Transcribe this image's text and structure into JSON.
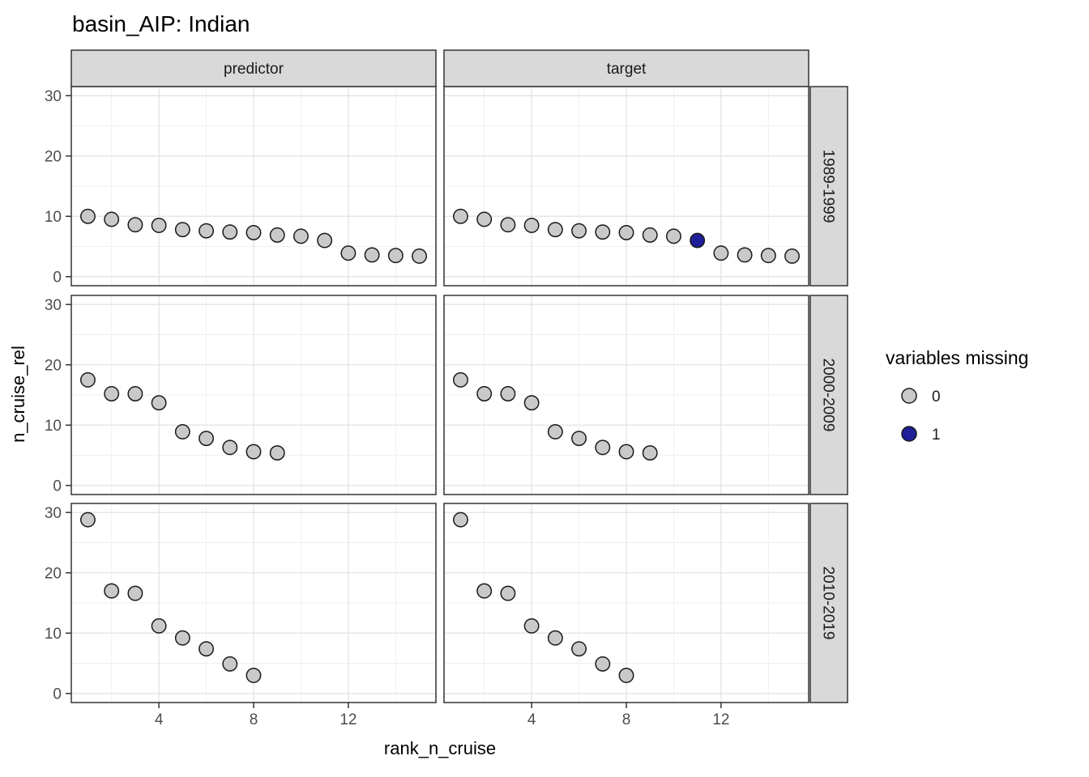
{
  "title": "basin_AIP: Indian",
  "chart_data": {
    "type": "scatter",
    "title": "basin_AIP: Indian",
    "xlabel": "rank_n_cruise",
    "ylabel": "n_cruise_rel",
    "x_ticks": [
      4,
      8,
      12
    ],
    "x_minor_breaks": [
      2,
      6,
      10,
      14
    ],
    "y_ticks": [
      0,
      10,
      20,
      30
    ],
    "y_minor_breaks": [
      5,
      15,
      25
    ],
    "xlim": [
      0.3,
      15.7
    ],
    "ylim": [
      -1.5,
      31.5
    ],
    "grid": "on",
    "facet": {
      "cols": [
        "predictor",
        "target"
      ],
      "rows": [
        "1989-1999",
        "2000-2009",
        "2010-2019"
      ]
    },
    "legend": {
      "title": "variables missing",
      "position": "right",
      "items": [
        {
          "label": "0",
          "fill": "#c9c9c9"
        },
        {
          "label": "1",
          "m": 1,
          "fill": "#1f1f99"
        }
      ]
    },
    "color_map": {
      "0": "#c9c9c9",
      "1": "#1f1f99"
    },
    "panels": [
      {
        "facet_col": "predictor",
        "facet_row": "1989-1999",
        "x": [
          1,
          2,
          3,
          4,
          5,
          6,
          7,
          8,
          9,
          10,
          11,
          12,
          13,
          14,
          15
        ],
        "y": [
          10.0,
          9.5,
          8.6,
          8.5,
          7.8,
          7.6,
          7.4,
          7.3,
          6.9,
          6.7,
          6.0,
          3.9,
          3.6,
          3.5,
          3.4
        ],
        "missing": [
          0,
          0,
          0,
          0,
          0,
          0,
          0,
          0,
          0,
          0,
          0,
          0,
          0,
          0,
          0
        ]
      },
      {
        "facet_col": "target",
        "facet_row": "1989-1999",
        "x": [
          1,
          2,
          3,
          4,
          5,
          6,
          7,
          8,
          9,
          10,
          11,
          12,
          13,
          14,
          15
        ],
        "y": [
          10.0,
          9.5,
          8.6,
          8.5,
          7.8,
          7.6,
          7.4,
          7.3,
          6.9,
          6.7,
          6.0,
          3.9,
          3.6,
          3.5,
          3.4
        ],
        "missing": [
          0,
          0,
          0,
          0,
          0,
          0,
          0,
          0,
          0,
          0,
          1,
          0,
          0,
          0,
          0
        ]
      },
      {
        "facet_col": "predictor",
        "facet_row": "2000-2009",
        "x": [
          1,
          2,
          3,
          4,
          5,
          6,
          7,
          8,
          9
        ],
        "y": [
          17.5,
          15.2,
          15.2,
          13.7,
          8.9,
          7.8,
          6.3,
          5.6,
          5.4
        ],
        "missing": [
          0,
          0,
          0,
          0,
          0,
          0,
          0,
          0,
          0
        ]
      },
      {
        "facet_col": "target",
        "facet_row": "2000-2009",
        "x": [
          1,
          2,
          3,
          4,
          5,
          6,
          7,
          8,
          9
        ],
        "y": [
          17.5,
          15.2,
          15.2,
          13.7,
          8.9,
          7.8,
          6.3,
          5.6,
          5.4
        ],
        "missing": [
          0,
          0,
          0,
          0,
          0,
          0,
          0,
          0,
          0
        ]
      },
      {
        "facet_col": "predictor",
        "facet_row": "2010-2019",
        "x": [
          1,
          2,
          3,
          4,
          5,
          6,
          7,
          8
        ],
        "y": [
          28.8,
          17.0,
          16.6,
          11.2,
          9.2,
          7.4,
          4.9,
          3.0
        ],
        "missing": [
          0,
          0,
          0,
          0,
          0,
          0,
          0,
          0
        ]
      },
      {
        "facet_col": "target",
        "facet_row": "2010-2019",
        "x": [
          1,
          2,
          3,
          4,
          5,
          6,
          7,
          8
        ],
        "y": [
          28.8,
          17.0,
          16.6,
          11.2,
          9.2,
          7.4,
          4.9,
          3.0
        ],
        "missing": [
          0,
          0,
          0,
          0,
          0,
          0,
          0,
          0
        ]
      }
    ]
  },
  "colors": {
    "point_fill_missing_0": "#c9c9c9",
    "point_fill_missing_1": "#1f1f99",
    "point_stroke": "#1a1a1a",
    "strip_fill": "#d9d9d9",
    "panel_border": "#333333",
    "grid_major": "#e3e3e3",
    "grid_minor": "#efefef",
    "tick_label": "#4d4d4d"
  }
}
